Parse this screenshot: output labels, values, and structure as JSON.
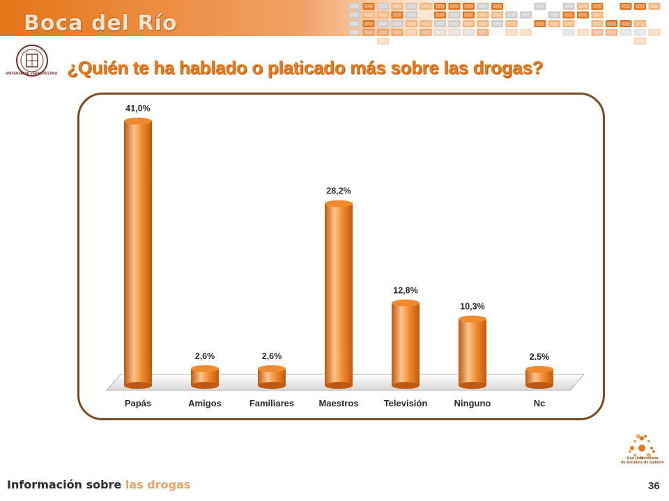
{
  "header": {
    "region_title": "Boca del Río",
    "page_title": "¿Quién te ha hablado o platicado más sobre las drogas?",
    "logo_left_text": "UNIVERSIDAD VERACRUZANA"
  },
  "footer": {
    "section_title_dark": "Información sobre",
    "section_title_light": "las drogas",
    "page_number": "36",
    "logo_right_text_1": "Red Universitaria",
    "logo_right_text_2": "de Estudios de Opinión"
  },
  "colors": {
    "bar": "#f08a2c",
    "bar_dark": "#c0580e",
    "bar_light": "#fbc48b",
    "frame": "#7b4a24",
    "accent": "#e77a1a"
  },
  "chart_data": {
    "type": "bar",
    "categories": [
      "Papás",
      "Amigos",
      "Familiares",
      "Maestros",
      "Televisión",
      "Ninguno",
      "Nc"
    ],
    "values": [
      41.0,
      2.6,
      2.6,
      28.2,
      12.8,
      10.3,
      2.5
    ],
    "data_labels": [
      "41,0%",
      "2,6%",
      "2,6%",
      "28,2%",
      "12,8%",
      "10,3%",
      "2.5%"
    ],
    "title": "",
    "xlabel": "",
    "ylabel": "",
    "ylim": [
      0,
      41.0
    ],
    "grid": false,
    "legend": "none"
  }
}
